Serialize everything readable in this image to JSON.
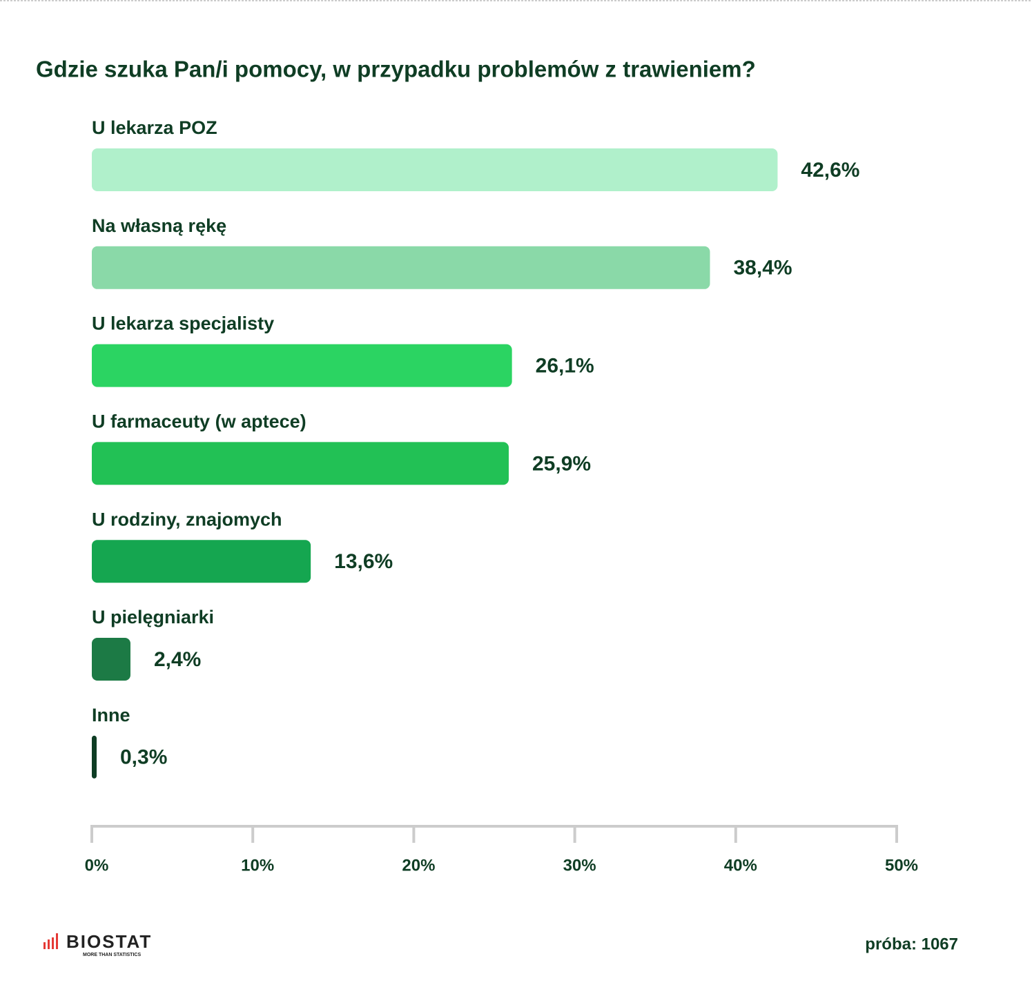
{
  "chart_data": {
    "type": "bar",
    "orientation": "horizontal",
    "title": "Gdzie szuka Pan/i pomocy, w przypadku problemów z trawieniem?",
    "categories": [
      "U lekarza POZ",
      "Na własną rękę",
      "U lekarza specjalisty",
      "U farmaceuty (w aptece)",
      "U rodziny, znajomych",
      "U pielęgniarki",
      "Inne"
    ],
    "values": [
      42.6,
      38.4,
      26.1,
      25.9,
      13.6,
      2.4,
      0.3
    ],
    "value_labels": [
      "42,6%",
      "38,4%",
      "26,1%",
      "25,9%",
      "13,6%",
      "2,4%",
      "0,3%"
    ],
    "colors": [
      "#b0f0cb",
      "#8ad9a8",
      "#2bd462",
      "#22c155",
      "#15a650",
      "#1c7a45",
      "#0e3d24"
    ],
    "xlim": [
      0,
      50
    ],
    "xticks": [
      {
        "value": 0,
        "label": "0%"
      },
      {
        "value": 10,
        "label": "10%"
      },
      {
        "value": 20,
        "label": "20%"
      },
      {
        "value": 30,
        "label": "30%"
      },
      {
        "value": 40,
        "label": "40%"
      },
      {
        "value": 50,
        "label": "50%"
      }
    ],
    "sample": "próba: 1067",
    "logo": {
      "name": "BIOSTAT",
      "tagline": "MORE THAN STATISTICS"
    }
  }
}
